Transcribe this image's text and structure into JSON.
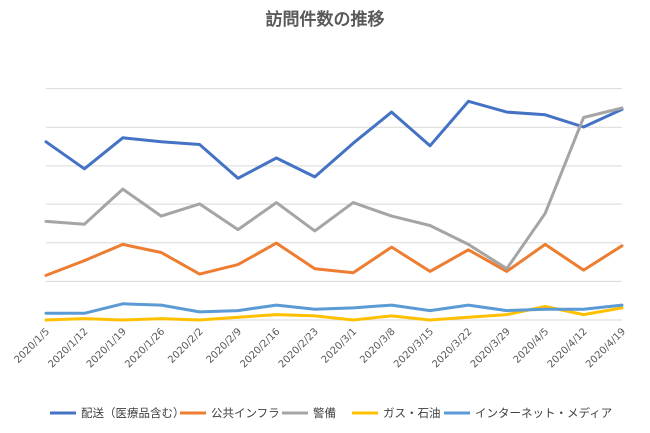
{
  "chart_data": {
    "type": "line",
    "title": "訪問件数の推移",
    "xlabel": "",
    "ylabel": "",
    "grid": true,
    "ylim": [
      0,
      100
    ],
    "gridlines": [
      0,
      14.3,
      28.6,
      42.9,
      57.1,
      71.4,
      85.7
    ],
    "legend_position": "bottom",
    "categories": [
      "2020/1/5",
      "2020/1/12",
      "2020/1/19",
      "2020/1/26",
      "2020/2/2",
      "2020/2/9",
      "2020/2/16",
      "2020/2/23",
      "2020/3/1",
      "2020/3/8",
      "2020/3/15",
      "2020/3/22",
      "2020/3/29",
      "2020/4/5",
      "2020/4/12",
      "2020/4/19"
    ],
    "series": [
      {
        "name": "配送（医療品含む）",
        "color": "#4472C4",
        "values": [
          66,
          56,
          67.5,
          66,
          65,
          52.5,
          60,
          53,
          65.5,
          77,
          64.5,
          81,
          77,
          76,
          71.5,
          78
        ]
      },
      {
        "name": "公共インフラ",
        "color": "#ED7D31",
        "values": [
          16.5,
          22,
          28,
          25,
          17,
          20.5,
          28.5,
          19,
          17.5,
          27,
          18,
          26,
          18,
          28,
          18.5,
          27.5
        ]
      },
      {
        "name": "警備",
        "color": "#A5A5A5",
        "values": [
          36.5,
          35.5,
          48.5,
          38.5,
          43,
          33.5,
          43.5,
          33,
          43.5,
          38.5,
          35,
          28,
          19,
          39.5,
          75,
          78.5
        ]
      },
      {
        "name": "ガス・石油",
        "color": "#FFC000",
        "values": [
          0,
          0.5,
          0,
          0.5,
          0,
          1,
          2,
          1.5,
          0,
          1.5,
          0,
          1,
          2,
          5,
          2,
          4.5
        ]
      },
      {
        "name": "インターネット・メディア",
        "color": "#5B9BD5",
        "values": [
          2.5,
          2.5,
          6,
          5.5,
          3,
          3.5,
          5.5,
          4,
          4.5,
          5.5,
          3.5,
          5.5,
          3.5,
          4,
          4,
          5.5
        ]
      }
    ]
  }
}
